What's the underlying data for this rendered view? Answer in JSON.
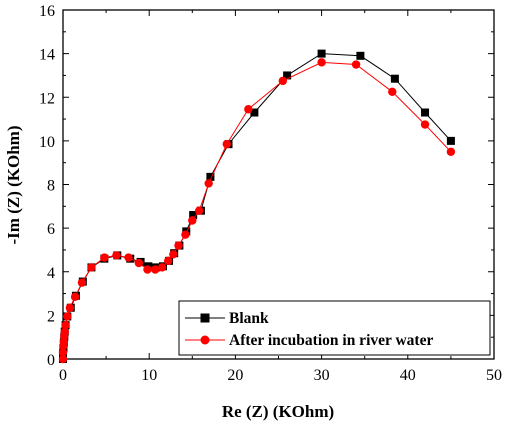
{
  "chart_data": {
    "type": "line",
    "xlabel": "Re (Z) (KOhm)",
    "ylabel": "-Im (Z) (KOhm)",
    "xlim": [
      0,
      50
    ],
    "ylim": [
      0,
      16
    ],
    "x_ticks": [
      0,
      10,
      20,
      30,
      40,
      50
    ],
    "y_ticks": [
      0,
      2,
      4,
      6,
      8,
      10,
      12,
      14,
      16
    ],
    "grid": false,
    "legend_position": "bottom-right",
    "series": [
      {
        "name": "Blank",
        "color": "#000000",
        "marker": "square",
        "x": [
          0.0,
          0.0,
          0.05,
          0.1,
          0.15,
          0.2,
          0.3,
          0.5,
          0.9,
          1.5,
          2.3,
          3.3,
          4.8,
          6.3,
          7.8,
          9.0,
          9.9,
          10.8,
          11.6,
          12.3,
          12.9,
          13.5,
          14.3,
          15.1,
          16.0,
          17.1,
          19.2,
          22.2,
          26.0,
          30.0,
          34.5,
          38.5,
          42.0,
          45.0
        ],
        "y": [
          0.0,
          0.25,
          0.5,
          0.75,
          1.0,
          1.25,
          1.55,
          1.95,
          2.35,
          2.9,
          3.55,
          4.2,
          4.6,
          4.75,
          4.6,
          4.45,
          4.25,
          4.2,
          4.25,
          4.5,
          4.85,
          5.2,
          5.85,
          6.6,
          6.8,
          8.35,
          9.85,
          11.3,
          13.0,
          14.0,
          13.9,
          12.85,
          11.3,
          10.0
        ]
      },
      {
        "name": "After incubation in river water",
        "color": "#ff0000",
        "marker": "circle",
        "x": [
          0.0,
          0.0,
          0.05,
          0.1,
          0.15,
          0.2,
          0.3,
          0.5,
          0.8,
          1.4,
          2.2,
          3.3,
          4.8,
          6.2,
          7.6,
          8.8,
          9.8,
          10.7,
          11.5,
          12.2,
          12.8,
          13.4,
          14.2,
          15.0,
          15.8,
          16.9,
          19.0,
          21.5,
          25.5,
          30.0,
          34.0,
          38.2,
          42.0,
          45.0
        ],
        "y": [
          0.0,
          0.3,
          0.6,
          0.8,
          1.05,
          1.25,
          1.55,
          1.95,
          2.35,
          2.85,
          3.5,
          4.2,
          4.65,
          4.75,
          4.65,
          4.4,
          4.1,
          4.1,
          4.2,
          4.5,
          4.8,
          5.2,
          5.7,
          6.35,
          6.8,
          8.05,
          9.85,
          11.45,
          12.75,
          13.6,
          13.5,
          12.25,
          10.75,
          9.5
        ]
      }
    ]
  }
}
